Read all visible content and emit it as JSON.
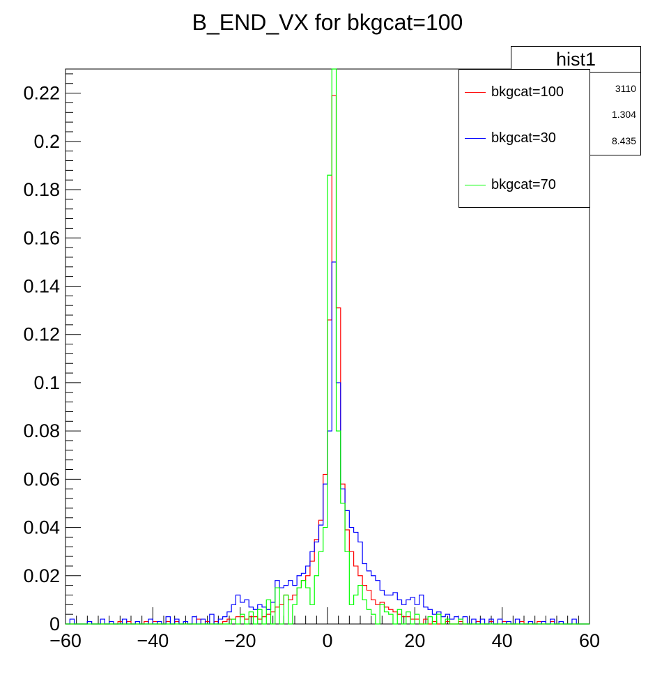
{
  "chart_data": {
    "type": "histogram",
    "title": "B_END_VX for bkgcat=100",
    "xlim": [
      -60,
      60
    ],
    "ylim": [
      0,
      0.23
    ],
    "bin_width": 1,
    "x_ticks": [
      "−60",
      "−40",
      "−20",
      "0",
      "20",
      "40",
      "60"
    ],
    "y_ticks": [
      "0",
      "0.02",
      "0.04",
      "0.06",
      "0.08",
      "0.1",
      "0.12",
      "0.14",
      "0.16",
      "0.18",
      "0.2",
      "0.22"
    ],
    "legend_position": "top-right",
    "series": [
      {
        "name": "bkgcat=100",
        "color": "#ff0000",
        "bins": [
          [
            -55,
            0.001
          ],
          [
            -48,
            0.001
          ],
          [
            -46,
            0.001
          ],
          [
            -42,
            0.001
          ],
          [
            -40,
            0.001
          ],
          [
            -37,
            0.001
          ],
          [
            -35,
            0.001
          ],
          [
            -30,
            0.002
          ],
          [
            -28,
            0.001
          ],
          [
            -26,
            0.001
          ],
          [
            -24,
            0.001
          ],
          [
            -23,
            0.002
          ],
          [
            -22,
            0.002
          ],
          [
            -21,
            0.003
          ],
          [
            -20,
            0.003
          ],
          [
            -19,
            0.002
          ],
          [
            -18,
            0.003
          ],
          [
            -17,
            0.003
          ],
          [
            -16,
            0.002
          ],
          [
            -15,
            0.003
          ],
          [
            -14,
            0.004
          ],
          [
            -13,
            0.005
          ],
          [
            -12,
            0.007
          ],
          [
            -11,
            0.008
          ],
          [
            -10,
            0.012
          ],
          [
            -9,
            0.01
          ],
          [
            -8,
            0.012
          ],
          [
            -7,
            0.015
          ],
          [
            -6,
            0.018
          ],
          [
            -5,
            0.02
          ],
          [
            -4,
            0.026
          ],
          [
            -3,
            0.035
          ],
          [
            -2,
            0.043
          ],
          [
            -1,
            0.062
          ],
          [
            0,
            0.126
          ],
          [
            1,
            0.219
          ],
          [
            2,
            0.131
          ],
          [
            3,
            0.058
          ],
          [
            4,
            0.039
          ],
          [
            5,
            0.03
          ],
          [
            6,
            0.024
          ],
          [
            7,
            0.02
          ],
          [
            8,
            0.016
          ],
          [
            9,
            0.014
          ],
          [
            10,
            0.01
          ],
          [
            11,
            0.008
          ],
          [
            12,
            0.009
          ],
          [
            13,
            0.007
          ],
          [
            14,
            0.006
          ],
          [
            15,
            0.005
          ],
          [
            16,
            0.004
          ],
          [
            17,
            0.003
          ],
          [
            18,
            0.003
          ],
          [
            19,
            0.002
          ],
          [
            20,
            0.002
          ],
          [
            22,
            0.002
          ],
          [
            24,
            0.001
          ],
          [
            27,
            0.001
          ],
          [
            30,
            0.001
          ],
          [
            34,
            0.001
          ],
          [
            37,
            0.001
          ],
          [
            40,
            0.001
          ],
          [
            44,
            0.001
          ],
          [
            48,
            0.001
          ],
          [
            51,
            0.001
          ]
        ]
      },
      {
        "name": "bkgcat=30",
        "color": "#0000ff",
        "bins": [
          [
            -59,
            0.002
          ],
          [
            -55,
            0.001
          ],
          [
            -52,
            0.002
          ],
          [
            -50,
            0.001
          ],
          [
            -47,
            0.002
          ],
          [
            -44,
            0.001
          ],
          [
            -41,
            0.002
          ],
          [
            -39,
            0.001
          ],
          [
            -37,
            0.003
          ],
          [
            -35,
            0.002
          ],
          [
            -33,
            0.001
          ],
          [
            -31,
            0.003
          ],
          [
            -29,
            0.002
          ],
          [
            -27,
            0.004
          ],
          [
            -25,
            0.002
          ],
          [
            -24,
            0.003
          ],
          [
            -23,
            0.005
          ],
          [
            -22,
            0.008
          ],
          [
            -21,
            0.012
          ],
          [
            -20,
            0.009
          ],
          [
            -19,
            0.01
          ],
          [
            -18,
            0.007
          ],
          [
            -17,
            0.006
          ],
          [
            -16,
            0.008
          ],
          [
            -15,
            0.007
          ],
          [
            -14,
            0.006
          ],
          [
            -13,
            0.009
          ],
          [
            -12,
            0.018
          ],
          [
            -11,
            0.015
          ],
          [
            -10,
            0.016
          ],
          [
            -9,
            0.018
          ],
          [
            -8,
            0.016
          ],
          [
            -7,
            0.02
          ],
          [
            -6,
            0.021
          ],
          [
            -5,
            0.024
          ],
          [
            -4,
            0.03
          ],
          [
            -3,
            0.034
          ],
          [
            -2,
            0.041
          ],
          [
            -1,
            0.058
          ],
          [
            0,
            0.08
          ],
          [
            1,
            0.15
          ],
          [
            2,
            0.1
          ],
          [
            3,
            0.056
          ],
          [
            4,
            0.047
          ],
          [
            5,
            0.04
          ],
          [
            6,
            0.038
          ],
          [
            7,
            0.034
          ],
          [
            8,
            0.025
          ],
          [
            9,
            0.022
          ],
          [
            10,
            0.02
          ],
          [
            11,
            0.018
          ],
          [
            12,
            0.014
          ],
          [
            13,
            0.012
          ],
          [
            14,
            0.012
          ],
          [
            15,
            0.013
          ],
          [
            16,
            0.01
          ],
          [
            17,
            0.008
          ],
          [
            18,
            0.01
          ],
          [
            19,
            0.011
          ],
          [
            20,
            0.008
          ],
          [
            21,
            0.012
          ],
          [
            22,
            0.007
          ],
          [
            23,
            0.006
          ],
          [
            24,
            0.004
          ],
          [
            25,
            0.005
          ],
          [
            26,
            0.003
          ],
          [
            27,
            0.004
          ],
          [
            28,
            0.002
          ],
          [
            29,
            0.003
          ],
          [
            30,
            0.002
          ],
          [
            31,
            0.003
          ],
          [
            33,
            0.002
          ],
          [
            35,
            0.002
          ],
          [
            37,
            0.002
          ],
          [
            39,
            0.002
          ],
          [
            41,
            0.001
          ],
          [
            43,
            0.002
          ],
          [
            46,
            0.001
          ],
          [
            49,
            0.001
          ],
          [
            51,
            0.002
          ],
          [
            53,
            0.001
          ],
          [
            56,
            0.002
          ]
        ]
      },
      {
        "name": "bkgcat=70",
        "color": "#00ff00",
        "bins": [
          [
            -22,
            0.002
          ],
          [
            -20,
            0.004
          ],
          [
            -18,
            0.005
          ],
          [
            -16,
            0.006
          ],
          [
            -14,
            0.01
          ],
          [
            -12,
            0.015
          ],
          [
            -10,
            0.012
          ],
          [
            -8,
            0.008
          ],
          [
            -7,
            0.015
          ],
          [
            -6,
            0.018
          ],
          [
            -5,
            0.015
          ],
          [
            -4,
            0.008
          ],
          [
            -3,
            0.02
          ],
          [
            -2,
            0.03
          ],
          [
            -1,
            0.04
          ],
          [
            0,
            0.186
          ],
          [
            1,
            0.23
          ],
          [
            2,
            0.08
          ],
          [
            3,
            0.05
          ],
          [
            4,
            0.03
          ],
          [
            5,
            0.008
          ],
          [
            6,
            0.012
          ],
          [
            7,
            0.016
          ],
          [
            8,
            0.01
          ],
          [
            9,
            0.006
          ],
          [
            10,
            0.004
          ],
          [
            12,
            0.008
          ],
          [
            13,
            0.005
          ],
          [
            14,
            0.004
          ],
          [
            16,
            0.006
          ],
          [
            18,
            0.005
          ],
          [
            20,
            0.004
          ],
          [
            23,
            0.003
          ],
          [
            25,
            0.004
          ],
          [
            27,
            0.002
          ],
          [
            30,
            0.002
          ]
        ]
      }
    ]
  },
  "stats": {
    "title": "hist1",
    "entries": "3110",
    "mean": "1.304",
    "std_dev": "8.435"
  }
}
